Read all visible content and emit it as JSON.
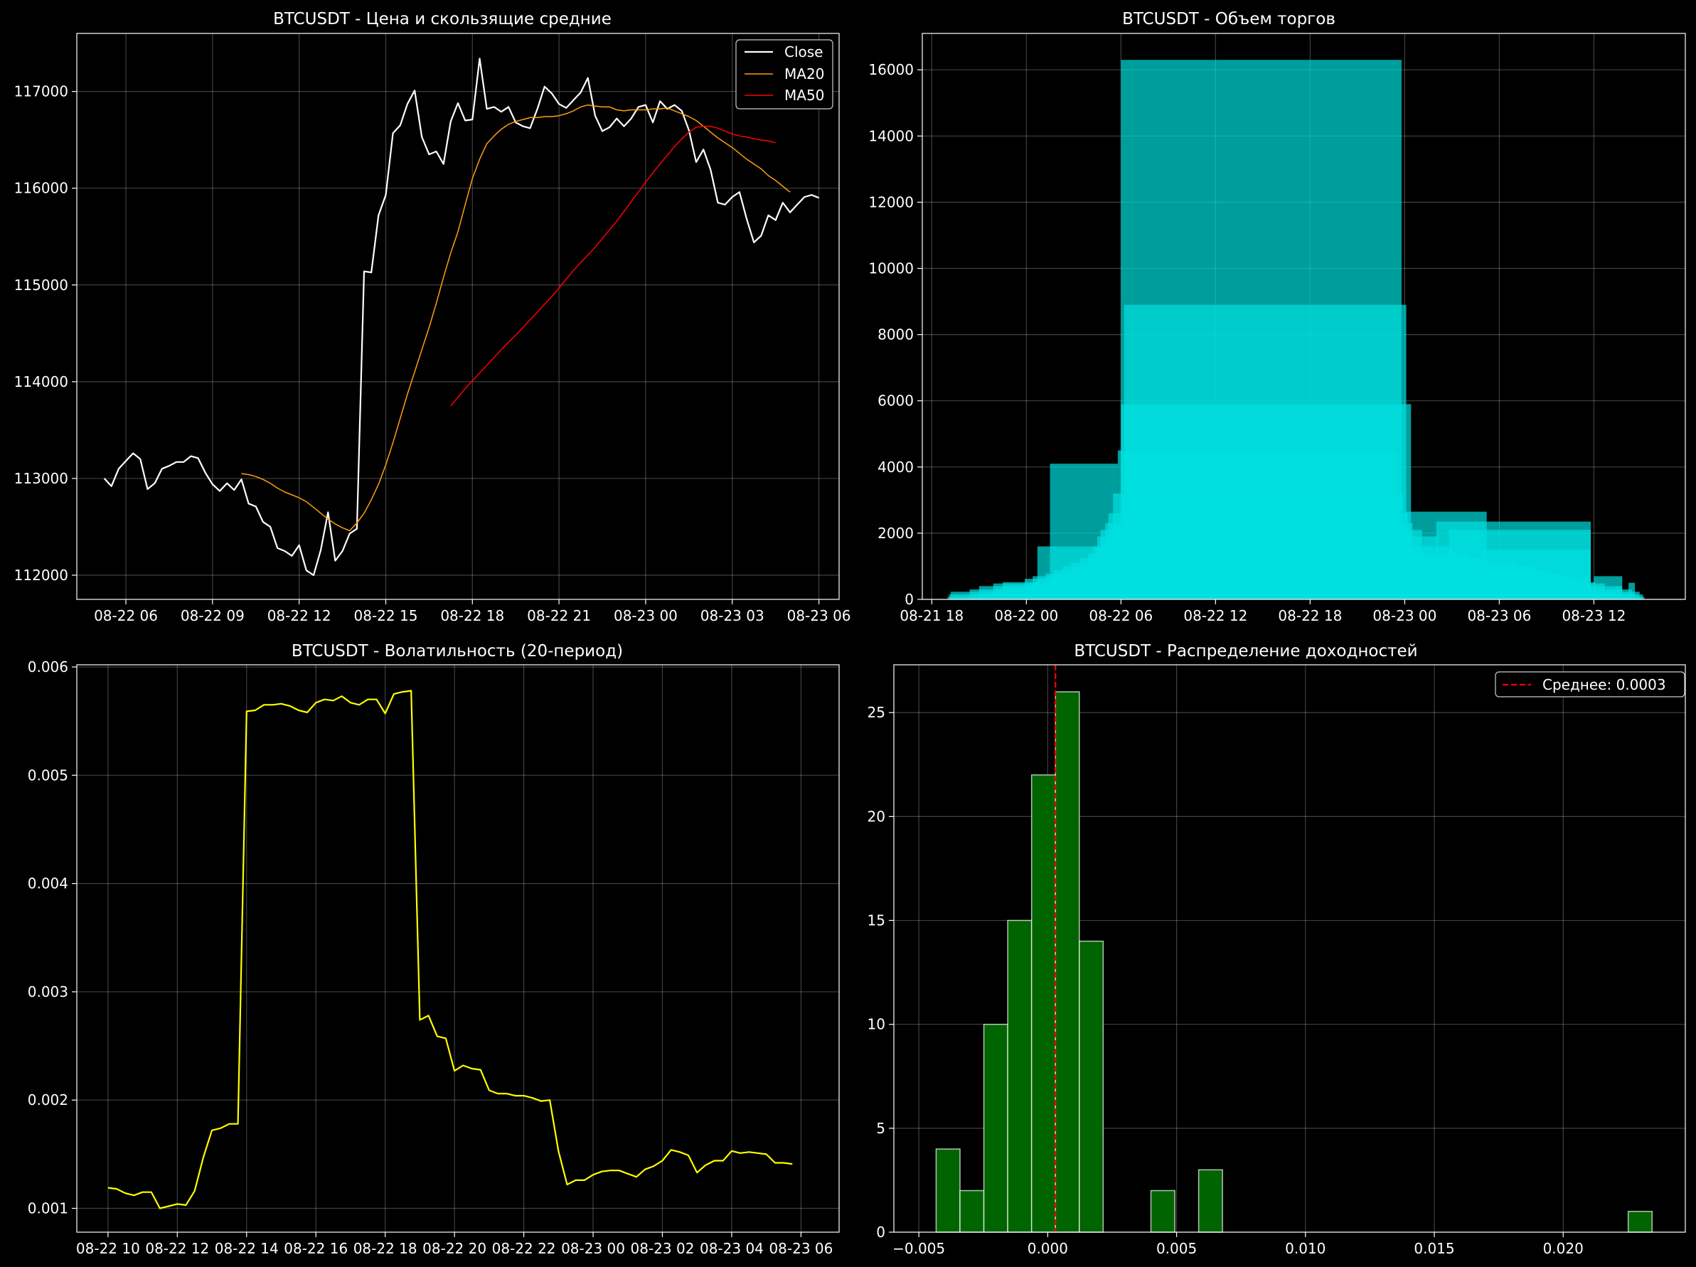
{
  "colors": {
    "background": "#000000",
    "axes": "#ffffff",
    "grid": "#ffffff",
    "close": "#ffffff",
    "ma20": "#ff9f0e",
    "ma50": "#ff0000",
    "volume": "#00e0e0",
    "volatility": "#ffff00",
    "histogram": "#006400",
    "mean_line": "#ff0000"
  },
  "chart_data": [
    {
      "id": "price",
      "type": "line",
      "title": "BTCUSDT - Цена и скользящие средние",
      "xlabel": "",
      "ylabel": "",
      "x_unit": "hours after 08-22 00:00",
      "xlim": [
        4.3,
        30.7
      ],
      "ylim": [
        111750,
        117600
      ],
      "xticks": [
        {
          "x": 6,
          "label": "08-22 06"
        },
        {
          "x": 9,
          "label": "08-22 09"
        },
        {
          "x": 12,
          "label": "08-22 12"
        },
        {
          "x": 15,
          "label": "08-22 15"
        },
        {
          "x": 18,
          "label": "08-22 18"
        },
        {
          "x": 21,
          "label": "08-22 21"
        },
        {
          "x": 24,
          "label": "08-23 00"
        },
        {
          "x": 27,
          "label": "08-23 03"
        },
        {
          "x": 30,
          "label": "08-23 06"
        }
      ],
      "yticks": [
        112000,
        113000,
        114000,
        115000,
        116000,
        117000
      ],
      "grid": true,
      "legend": "top-right",
      "series": [
        {
          "name": "Close",
          "color_key": "close",
          "width": 2.2,
          "x_start": 5.25,
          "x_step": 0.25,
          "values": [
            113000,
            112920,
            113100,
            113180,
            113260,
            113200,
            112890,
            112950,
            113100,
            113130,
            113170,
            113170,
            113230,
            113210,
            113060,
            112940,
            112870,
            112950,
            112880,
            112990,
            112740,
            112710,
            112550,
            112500,
            112280,
            112250,
            112200,
            112310,
            112050,
            112000,
            112260,
            112650,
            112150,
            112250,
            112430,
            112480,
            115140,
            115130,
            115720,
            115930,
            116570,
            116650,
            116870,
            117010,
            116530,
            116350,
            116380,
            116250,
            116690,
            116880,
            116700,
            116710,
            117340,
            116820,
            116840,
            116790,
            116840,
            116680,
            116640,
            116620,
            116820,
            117050,
            116980,
            116870,
            116830,
            116910,
            116990,
            117140,
            116750,
            116590,
            116630,
            116720,
            116640,
            116720,
            116840,
            116860,
            116680,
            116900,
            116820,
            116860,
            116800,
            116600,
            116270,
            116400,
            116190,
            115850,
            115830,
            115910,
            115960,
            115680,
            115440,
            115510,
            115720,
            115670,
            115850,
            115750,
            115830,
            115910,
            115930,
            115900
          ]
        },
        {
          "name": "MA20",
          "color_key": "ma20",
          "width": 1.5,
          "x_start": 10.0,
          "x_step": 0.25,
          "values": [
            113050,
            113040,
            113020,
            112990,
            112950,
            112900,
            112860,
            112830,
            112800,
            112760,
            112700,
            112640,
            112580,
            112530,
            112490,
            112460,
            112540,
            112640,
            112780,
            112940,
            113140,
            113370,
            113620,
            113870,
            114100,
            114330,
            114560,
            114810,
            115080,
            115330,
            115550,
            115830,
            116100,
            116300,
            116460,
            116540,
            116610,
            116660,
            116690,
            116710,
            116730,
            116730,
            116740,
            116740,
            116750,
            116770,
            116800,
            116840,
            116860,
            116850,
            116840,
            116840,
            116810,
            116800,
            116810,
            116810,
            116810,
            116820,
            116820,
            116830,
            116800,
            116770,
            116740,
            116700,
            116640,
            116580,
            116520,
            116470,
            116420,
            116360,
            116300,
            116250,
            116200,
            116130,
            116080,
            116020,
            115960
          ]
        },
        {
          "name": "MA50",
          "color_key": "ma50",
          "width": 1.5,
          "x_start": 17.25,
          "x_step": 0.25,
          "values": [
            113750,
            113840,
            113930,
            114010,
            114090,
            114170,
            114250,
            114330,
            114410,
            114480,
            114560,
            114640,
            114720,
            114800,
            114880,
            114970,
            115060,
            115150,
            115230,
            115310,
            115390,
            115480,
            115570,
            115660,
            115760,
            115860,
            115960,
            116060,
            116160,
            116250,
            116340,
            116430,
            116510,
            116580,
            116630,
            116640,
            116640,
            116620,
            116590,
            116560,
            116540,
            116530,
            116510,
            116500,
            116490,
            116470
          ]
        }
      ]
    },
    {
      "id": "volume",
      "type": "bar",
      "title": "BTCUSDT - Объем торгов",
      "xlabel": "",
      "ylabel": "",
      "x_unit": "hours after 08-22 00:00",
      "xlim": [
        -6.6,
        41.8
      ],
      "ylim": [
        0,
        17100
      ],
      "xticks": [
        {
          "x": -6,
          "label": "08-21 18"
        },
        {
          "x": 0,
          "label": "08-22 00"
        },
        {
          "x": 6,
          "label": "08-22 06"
        },
        {
          "x": 12,
          "label": "08-22 12"
        },
        {
          "x": 18,
          "label": "08-22 18"
        },
        {
          "x": 24,
          "label": "08-23 00"
        },
        {
          "x": 30,
          "label": "08-23 06"
        },
        {
          "x": 36,
          "label": "08-23 12"
        }
      ],
      "yticks": [
        0,
        2000,
        4000,
        6000,
        8000,
        10000,
        12000,
        14000,
        16000
      ],
      "grid": true,
      "opacity": 0.7,
      "bars": [
        {
          "x0": -5.0,
          "x1": 39.2,
          "v": 80
        },
        {
          "x0": -4.9,
          "x1": 39.1,
          "v": 150
        },
        {
          "x0": -4.8,
          "x1": 38.9,
          "v": 230
        },
        {
          "x0": -3.6,
          "x1": 38.4,
          "v": 300
        },
        {
          "x0": -3.0,
          "x1": 37.8,
          "v": 400
        },
        {
          "x0": -2.1,
          "x1": 36.7,
          "v": 480
        },
        {
          "x0": -1.5,
          "x1": 36.1,
          "v": 520
        },
        {
          "x0": -0.1,
          "x1": 35.5,
          "v": 620
        },
        {
          "x0": 0.4,
          "x1": 34.8,
          "v": 700
        },
        {
          "x0": 1.2,
          "x1": 34.1,
          "v": 780
        },
        {
          "x0": 1.7,
          "x1": 33.2,
          "v": 880
        },
        {
          "x0": 2.3,
          "x1": 32.3,
          "v": 1000
        },
        {
          "x0": 2.8,
          "x1": 31.1,
          "v": 1100
        },
        {
          "x0": 3.4,
          "x1": 29.2,
          "v": 1250
        },
        {
          "x0": 3.9,
          "x1": 28.0,
          "v": 1400
        },
        {
          "x0": 4.2,
          "x1": 27.0,
          "v": 1600
        },
        {
          "x0": 4.5,
          "x1": 26.1,
          "v": 1900
        },
        {
          "x0": 4.7,
          "x1": 25.1,
          "v": 2100
        },
        {
          "x0": 5.0,
          "x1": 24.5,
          "v": 2300
        },
        {
          "x0": 5.2,
          "x1": 24.2,
          "v": 2600
        },
        {
          "x0": 5.5,
          "x1": 23.9,
          "v": 3200
        },
        {
          "x0": 5.8,
          "x1": 23.5,
          "v": 4500
        },
        {
          "x0": 6.0,
          "x1": 24.4,
          "v": 5900
        },
        {
          "x0": 6.2,
          "x1": 24.1,
          "v": 8900
        },
        {
          "x0": 6.0,
          "x1": 23.8,
          "v": 16300
        },
        {
          "x0": 1.5,
          "x1": 5.8,
          "v": 4100
        },
        {
          "x0": 0.7,
          "x1": 7.0,
          "v": 1600
        },
        {
          "x0": 24.0,
          "x1": 29.2,
          "v": 2650
        },
        {
          "x0": 26.0,
          "x1": 35.8,
          "v": 2350
        },
        {
          "x0": 26.8,
          "x1": 35.8,
          "v": 2100
        },
        {
          "x0": 28.8,
          "x1": 35.8,
          "v": 1500
        },
        {
          "x0": 36.0,
          "x1": 37.8,
          "v": 700
        },
        {
          "x0": 38.2,
          "x1": 38.6,
          "v": 500
        }
      ]
    },
    {
      "id": "volatility",
      "type": "line",
      "title": "BTCUSDT - Волатильность (20-период)",
      "xlabel": "",
      "ylabel": "",
      "x_unit": "hours after 08-22 00:00",
      "xlim": [
        9.1,
        31.1
      ],
      "ylim": [
        0.00078,
        0.00602
      ],
      "xticks": [
        {
          "x": 10,
          "label": "08-22 10"
        },
        {
          "x": 12,
          "label": "08-22 12"
        },
        {
          "x": 14,
          "label": "08-22 14"
        },
        {
          "x": 16,
          "label": "08-22 16"
        },
        {
          "x": 18,
          "label": "08-22 18"
        },
        {
          "x": 20,
          "label": "08-22 20"
        },
        {
          "x": 22,
          "label": "08-22 22"
        },
        {
          "x": 24,
          "label": "08-23 00"
        },
        {
          "x": 26,
          "label": "08-23 02"
        },
        {
          "x": 28,
          "label": "08-23 04"
        },
        {
          "x": 30,
          "label": "08-23 06"
        }
      ],
      "yticks": [
        {
          "v": 0.001,
          "label": "0.001"
        },
        {
          "v": 0.002,
          "label": "0.002"
        },
        {
          "v": 0.003,
          "label": "0.003"
        },
        {
          "v": 0.004,
          "label": "0.004"
        },
        {
          "v": 0.005,
          "label": "0.005"
        },
        {
          "v": 0.006,
          "label": "0.006"
        }
      ],
      "grid": true,
      "series": [
        {
          "name": "",
          "color_key": "volatility",
          "width": 2.2,
          "x_start": 10.0,
          "x_step": 0.25,
          "values": [
            0.00119,
            0.00118,
            0.00114,
            0.00112,
            0.00115,
            0.00115,
            0.001,
            0.00102,
            0.00104,
            0.00103,
            0.00116,
            0.00147,
            0.00172,
            0.00174,
            0.00178,
            0.00178,
            0.00559,
            0.0056,
            0.00565,
            0.00565,
            0.00566,
            0.00564,
            0.0056,
            0.00558,
            0.00567,
            0.0057,
            0.00569,
            0.00573,
            0.00567,
            0.00565,
            0.0057,
            0.0057,
            0.00557,
            0.00575,
            0.00577,
            0.00578,
            0.00274,
            0.00278,
            0.00259,
            0.00257,
            0.00227,
            0.00232,
            0.00229,
            0.00228,
            0.00209,
            0.00206,
            0.00206,
            0.00204,
            0.00204,
            0.00202,
            0.00199,
            0.002,
            0.00153,
            0.00122,
            0.00126,
            0.00126,
            0.00131,
            0.00134,
            0.00135,
            0.00135,
            0.00132,
            0.00129,
            0.00136,
            0.00139,
            0.00144,
            0.00154,
            0.00152,
            0.00149,
            0.00133,
            0.0014,
            0.00144,
            0.00144,
            0.00153,
            0.00151,
            0.00152,
            0.00151,
            0.0015,
            0.00142,
            0.00142,
            0.00141
          ]
        }
      ]
    },
    {
      "id": "returns",
      "type": "bar",
      "title": "BTCUSDT - Распределение доходностей",
      "xlabel": "",
      "ylabel": "",
      "xlim": [
        -0.00597,
        0.02474
      ],
      "ylim": [
        0,
        27.3
      ],
      "xticks": [
        {
          "v": -0.005,
          "label": "−0.005"
        },
        {
          "v": 0.0,
          "label": "0.000"
        },
        {
          "v": 0.005,
          "label": "0.005"
        },
        {
          "v": 0.01,
          "label": "0.010"
        },
        {
          "v": 0.015,
          "label": "0.015"
        },
        {
          "v": 0.02,
          "label": "0.020"
        }
      ],
      "yticks": [
        0,
        5,
        10,
        15,
        20,
        25
      ],
      "grid": true,
      "legend": "top-right",
      "bin_start": -0.00433,
      "bin_width": 0.000926,
      "counts": [
        4,
        2,
        10,
        15,
        22,
        26,
        14,
        0,
        0,
        2,
        0,
        3,
        0,
        0,
        0,
        0,
        0,
        0,
        0,
        0,
        0,
        0,
        0,
        0,
        0,
        0,
        0,
        0,
        0,
        1
      ],
      "mean": 0.0003,
      "mean_label": "Среднее: 0.0003"
    }
  ]
}
